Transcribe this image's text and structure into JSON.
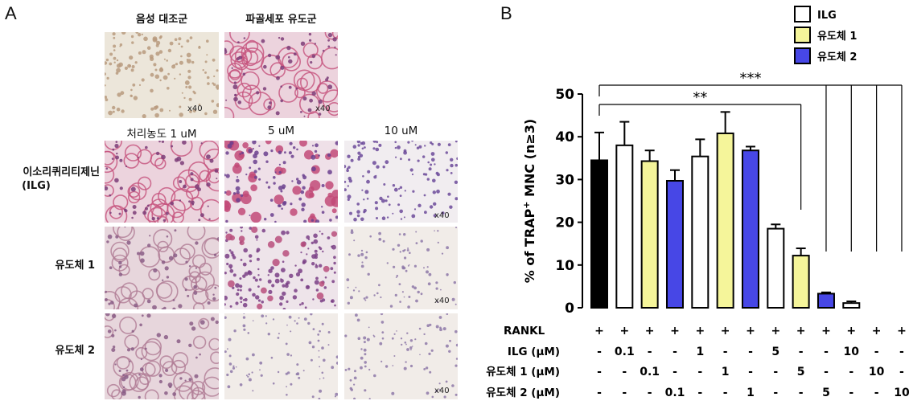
{
  "panel_a": {
    "letter": "A",
    "controls": [
      "음성 대조군",
      "파골세포 유도군"
    ],
    "concentrations": [
      "처리농도 1 uM",
      "5 uM",
      "10 uM"
    ],
    "rows": [
      {
        "label_line1": "이소리퀴리티제닌",
        "label_line2": "(ILG)"
      },
      {
        "label_line1": "유도체 1",
        "label_line2": ""
      },
      {
        "label_line1": "유도체 2",
        "label_line2": ""
      }
    ],
    "magnification": "x40"
  },
  "panel_b": {
    "letter": "B"
  },
  "chart_data": {
    "type": "bar",
    "ylabel_prefix": "% of TRAP",
    "ylabel_sup": "+",
    "ylabel_suffix": " MNC (n≥3)",
    "ylim": [
      0,
      50
    ],
    "yticks": [
      "0",
      "10",
      "20",
      "30",
      "40",
      "50"
    ],
    "legend": [
      {
        "name": "ILG",
        "color": "#ffffff"
      },
      {
        "name": "유도체 1",
        "color": "#f5f59a"
      },
      {
        "name": "유도체 2",
        "color": "#4747e6"
      }
    ],
    "bars": [
      {
        "value": 34.5,
        "error": 6.5,
        "color": "#000000"
      },
      {
        "value": 38.0,
        "error": 5.5,
        "color": "#ffffff"
      },
      {
        "value": 34.3,
        "error": 2.5,
        "color": "#f5f59a"
      },
      {
        "value": 29.7,
        "error": 2.5,
        "color": "#4747e6"
      },
      {
        "value": 35.4,
        "error": 4.0,
        "color": "#ffffff"
      },
      {
        "value": 40.8,
        "error": 5.0,
        "color": "#f5f59a"
      },
      {
        "value": 36.8,
        "error": 0.9,
        "color": "#4747e6"
      },
      {
        "value": 18.5,
        "error": 1.0,
        "color": "#ffffff"
      },
      {
        "value": 12.2,
        "error": 1.7,
        "color": "#f5f59a"
      },
      {
        "value": 3.3,
        "error": 0.3,
        "color": "#4747e6"
      },
      {
        "value": 1.1,
        "error": 0.4,
        "color": "#ffffff"
      },
      {
        "value": 0,
        "error": 0,
        "color": "#f5f59a"
      },
      {
        "value": 0,
        "error": 0,
        "color": "#4747e6"
      }
    ],
    "significance": [
      {
        "label": "**",
        "to": 8
      },
      {
        "label": "***",
        "to": [
          9,
          10,
          11,
          12
        ]
      }
    ],
    "table": [
      {
        "label": "RANKL",
        "cells": [
          "+",
          "+",
          "+",
          "+",
          "+",
          "+",
          "+",
          "+",
          "+",
          "+",
          "+",
          "+",
          "+"
        ]
      },
      {
        "label": "ILG (μM)",
        "cells": [
          "-",
          "0.1",
          "-",
          "-",
          "1",
          "-",
          "-",
          "5",
          "-",
          "-",
          "10",
          "-",
          "-"
        ]
      },
      {
        "label": "유도체 1 (μM)",
        "cells": [
          "-",
          "-",
          "0.1",
          "-",
          "-",
          "1",
          "-",
          "-",
          "5",
          "-",
          "-",
          "10",
          "-"
        ]
      },
      {
        "label": "유도체 2 (μM)",
        "cells": [
          "-",
          "-",
          "-",
          "0.1",
          "-",
          "-",
          "1",
          "-",
          "-",
          "5",
          "-",
          "-",
          "10"
        ]
      }
    ]
  }
}
